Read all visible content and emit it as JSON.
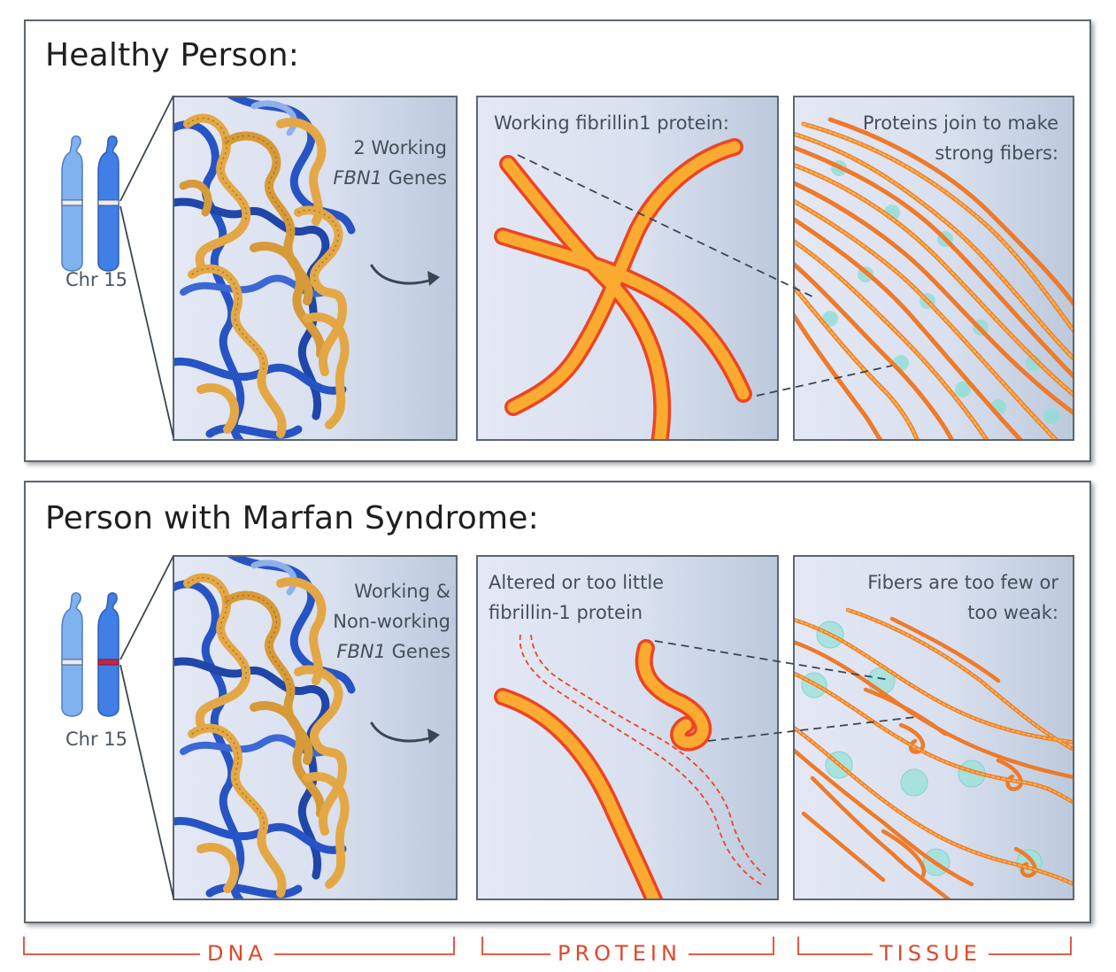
{
  "top": {
    "title": "Healthy Person:",
    "chromosome_label": "Chr 15",
    "dna_text": {
      "line1": "2 Working",
      "gene_name": "FBN1",
      "gene_suffix": " Genes"
    },
    "protein_text": "Working  fibrillin1 protein:",
    "tissue_text": {
      "line1": "Proteins join to make",
      "line2": "strong fibers:"
    }
  },
  "bottom": {
    "title": "Person with Marfan Syndrome:",
    "chromosome_label": "Chr 15",
    "dna_text": {
      "line1": "Working &",
      "line2": "Non-working",
      "gene_name": "FBN1",
      "gene_suffix": " Genes"
    },
    "protein_text": {
      "line1": "Altered or too little",
      "line2": "fibrillin-1 protein"
    },
    "tissue_text": {
      "line1": "Fibers are too few or",
      "line2": "too weak:"
    }
  },
  "bracket_labels": {
    "dna": "DNA",
    "protein": "PROTEIN",
    "tissue": "TISSUE"
  },
  "colors": {
    "protein_fill": "#fbab30",
    "protein_outline": "#ee4424",
    "dna_blue": "#2754c4",
    "dna_gold": "#e3a845",
    "chromosome_light": "#7fb2ef",
    "chromosome_dark": "#3f7fe6",
    "mutation_band": "#c2264a",
    "bracket": "#e2472b"
  },
  "icons": [
    "chromosome-icon",
    "dna-strands-icon",
    "curved-arrow-icon",
    "protein-chain-icon",
    "fiber-bundle-icon"
  ]
}
